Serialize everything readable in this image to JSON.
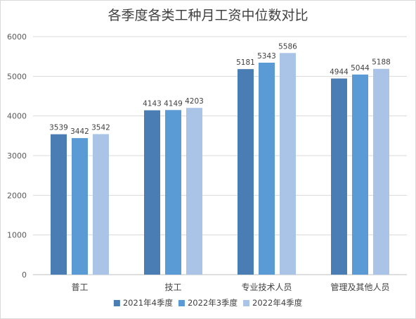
{
  "chart_data": {
    "type": "bar",
    "title": "各季度各类工种月工资中位数对比",
    "categories": [
      "普工",
      "技工",
      "专业技术人员",
      "管理及其他人员"
    ],
    "series": [
      {
        "name": "2021年4季度",
        "values": [
          3539,
          4143,
          5181,
          4944
        ],
        "color": "#4a7db4"
      },
      {
        "name": "2022年3季度",
        "values": [
          3442,
          4149,
          5343,
          5044
        ],
        "color": "#5b9bd5"
      },
      {
        "name": "2022年4季度",
        "values": [
          3542,
          4203,
          5586,
          5188
        ],
        "color": "#a9c4e6"
      }
    ],
    "ylim": [
      0,
      6000
    ],
    "yticks": [
      "0",
      "1000",
      "2000",
      "3000",
      "4000",
      "5000",
      "6000"
    ],
    "grid": true,
    "legend_position": "bottom",
    "data_labels": true
  }
}
